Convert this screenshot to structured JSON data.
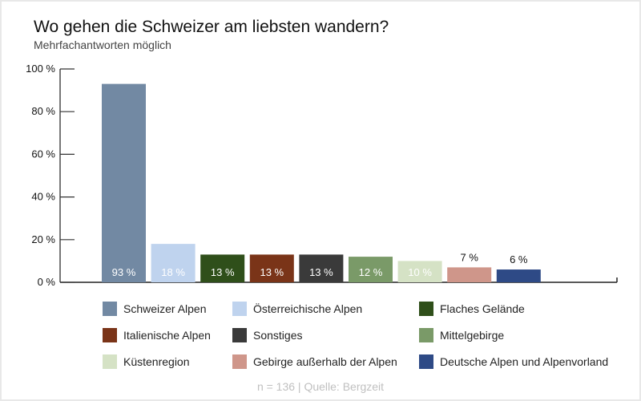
{
  "title": "Wo gehen die Schweizer am liebsten wandern?",
  "subtitle": "Mehrfachantworten möglich",
  "source": "n = 136 | Quelle: Bergzeit",
  "chart_data": {
    "type": "bar",
    "title": "Wo gehen die Schweizer am liebsten wandern?",
    "subtitle": "Mehrfachantworten möglich",
    "categories": [
      "Schweizer Alpen",
      "Österreichische Alpen",
      "Flaches Gelände",
      "Italienische Alpen",
      "Sonstiges",
      "Mittelgebirge",
      "Küstenregion",
      "Gebirge außerhalb der Alpen",
      "Deutsche Alpen und Alpenvorland"
    ],
    "values": [
      93,
      18,
      13,
      13,
      13,
      12,
      10,
      7,
      6
    ],
    "data_labels": [
      "93 %",
      "18 %",
      "13 %",
      "13 %",
      "13 %",
      "12 %",
      "10 %",
      "7 %",
      "6 %"
    ],
    "colors": [
      "#7289a3",
      "#bfd3ee",
      "#2f4f1a",
      "#7a3418",
      "#3a3a3a",
      "#7a9a68",
      "#d5e2c5",
      "#cf968a",
      "#2e4a86"
    ],
    "ylim": [
      0,
      100
    ],
    "yticks": [
      "0 %",
      "20 %",
      "40 %",
      "60 %",
      "80 %",
      "100 %"
    ],
    "grid": false,
    "legend": "bottom"
  }
}
